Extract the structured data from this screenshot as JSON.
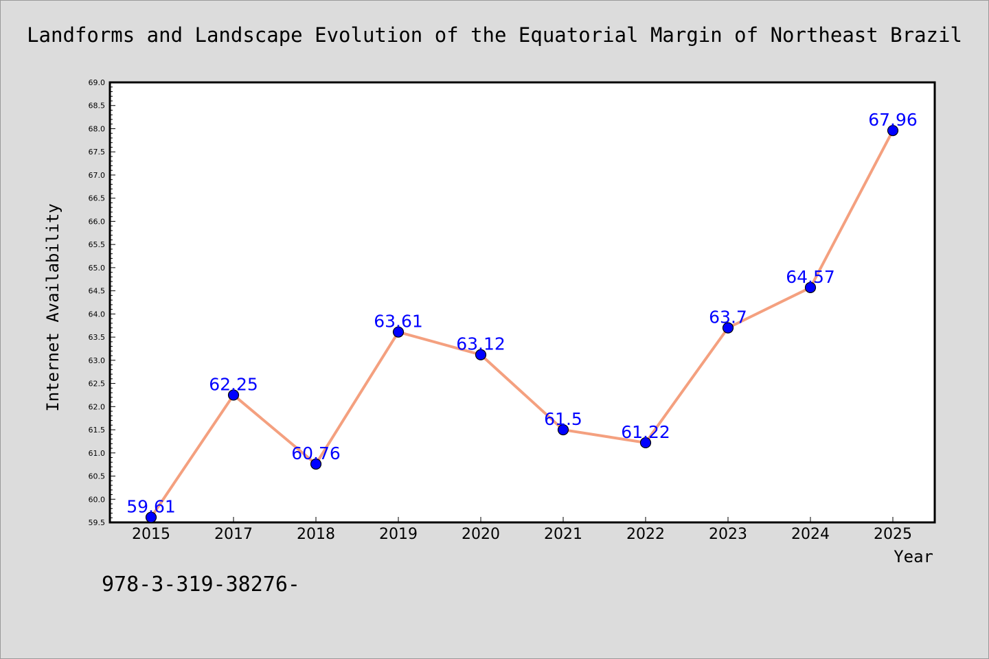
{
  "chart_data": {
    "type": "line",
    "title": "Landforms and Landscape Evolution of the Equatorial Margin of Northeast Brazil",
    "xlabel": "Year",
    "ylabel": "Internet Availability",
    "categories": [
      "2015",
      "2017",
      "2018",
      "2019",
      "2020",
      "2021",
      "2022",
      "2023",
      "2024",
      "2025"
    ],
    "series": [
      {
        "values": [
          59.61,
          62.25,
          60.76,
          63.61,
          63.12,
          61.5,
          61.22,
          63.7,
          64.57,
          67.96
        ],
        "data_labels": [
          "59.61",
          "62.25",
          "60.76",
          "63.61",
          "63.12",
          "61.5",
          "61.22",
          "63.7",
          "64.57",
          "67.96"
        ]
      }
    ],
    "ylim": [
      59.5,
      69.0
    ],
    "yticks": [
      "59.5",
      "60.0",
      "60.5",
      "61.0",
      "61.5",
      "62.0",
      "62.5",
      "63.0",
      "63.5",
      "64.0",
      "64.5",
      "65.0",
      "65.5",
      "66.0",
      "66.5",
      "67.0",
      "67.5",
      "68.0",
      "68.5",
      "69.0"
    ],
    "grid": false,
    "legend": "none",
    "colors": {
      "line": "#f4a07f",
      "marker_fill": "#0000ff",
      "marker_edge": "#000000",
      "data_label": "#0000ff",
      "plot_background": "#ffffff",
      "figure_background": "#dcdcdc"
    }
  },
  "footer": {
    "code": "978-3-319-38276-"
  }
}
